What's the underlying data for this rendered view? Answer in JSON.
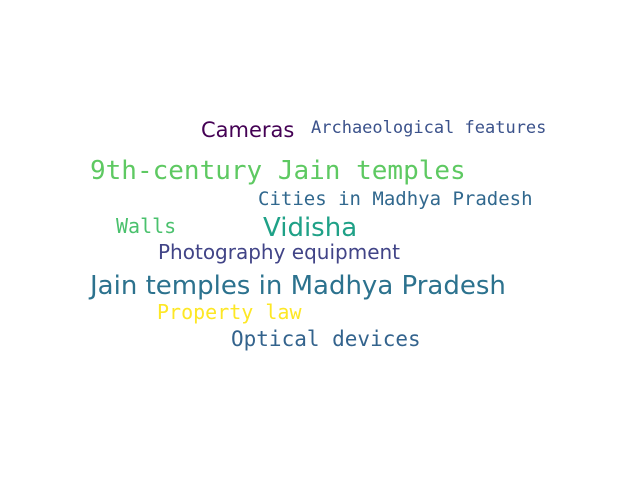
{
  "words": [
    {
      "text": "Cameras",
      "color": "#440154"
    },
    {
      "text": "Archaeological features",
      "color": "#3b528b"
    },
    {
      "text": "9th-century Jain temples",
      "color": "#5ec962"
    },
    {
      "text": "Cities in Madhya Pradesh",
      "color": "#31688e"
    },
    {
      "text": "Walls",
      "color": "#4ac16d"
    },
    {
      "text": "Vidisha",
      "color": "#1fa187"
    },
    {
      "text": "Photography equipment",
      "color": "#414487"
    },
    {
      "text": "Jain temples in Madhya Pradesh",
      "color": "#2c728e"
    },
    {
      "text": "Property law",
      "color": "#fde725"
    },
    {
      "text": "Optical devices",
      "color": "#33638d"
    }
  ]
}
